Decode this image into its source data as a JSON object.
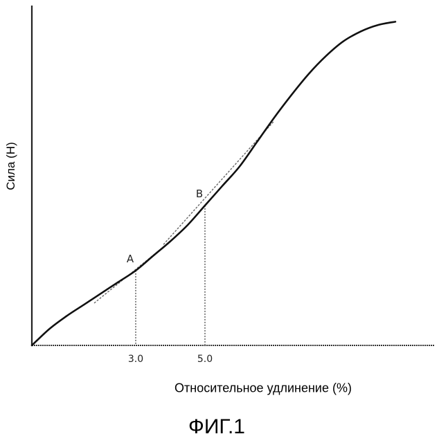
{
  "chart_data": {
    "type": "line",
    "xlabel": "Относительное удлинение (%)",
    "ylabel": "Сила (Н)",
    "caption": "ФИГ.1",
    "x_ticks": [
      {
        "value": 3.0,
        "label": "3.0"
      },
      {
        "value": 5.0,
        "label": "5.0"
      }
    ],
    "xlim": [
      0,
      11.2
    ],
    "ylim": [
      0,
      10
    ],
    "grid": false,
    "series": [
      {
        "x": [
          0,
          0.5,
          1.0,
          1.5,
          2.0,
          2.5,
          3.0,
          3.5,
          4.0,
          4.5,
          5.0,
          5.5,
          6.0,
          6.5,
          7.0,
          7.5,
          8.0,
          8.5,
          9.0,
          9.5,
          10.0,
          10.5
        ],
        "y": [
          0,
          0.5,
          0.9,
          1.25,
          1.6,
          1.95,
          2.3,
          2.75,
          3.2,
          3.7,
          4.3,
          4.9,
          5.5,
          6.25,
          7.0,
          7.7,
          8.35,
          8.9,
          9.35,
          9.65,
          9.85,
          9.95
        ]
      }
    ],
    "annotations": [
      {
        "label": "A",
        "x": 3.0,
        "y": 2.3,
        "tangent": {
          "x": [
            1.8,
            4.0
          ],
          "y": [
            1.3,
            3.2
          ]
        }
      },
      {
        "label": "B",
        "x": 5.0,
        "y": 4.3,
        "tangent": {
          "x": [
            3.8,
            7.0
          ],
          "y": [
            3.1,
            6.9
          ]
        }
      }
    ]
  }
}
